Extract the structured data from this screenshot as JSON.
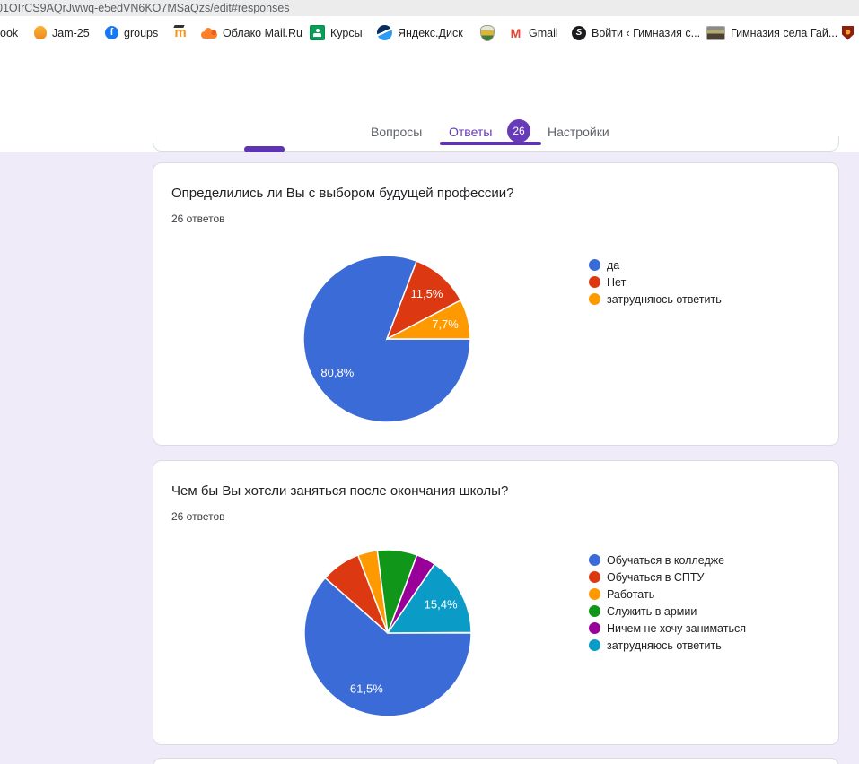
{
  "browser": {
    "url": "01OIrCS9AQrJwwq-e5edVN6KO7MSaQzs/edit#responses",
    "bookmarks": [
      {
        "label": "ook",
        "icon": "bookmark-text-partial"
      },
      {
        "label": "Jam-25",
        "icon": "jam-hand-icon"
      },
      {
        "label": "groups",
        "icon": "facebook-icon"
      },
      {
        "label": "",
        "icon": "moodle-icon"
      },
      {
        "label": "Облако Mail.Ru",
        "icon": "mailru-cloud-icon"
      },
      {
        "label": "Курсы",
        "icon": "google-classroom-icon"
      },
      {
        "label": "Яндекс.Диск",
        "icon": "yandex-disk-icon"
      },
      {
        "label": "",
        "icon": "school-crest-icon"
      },
      {
        "label": "Gmail",
        "icon": "gmail-icon"
      },
      {
        "label": "Войти ‹ Гимназия с...",
        "icon": "globe-s-icon"
      },
      {
        "label": "Гимназия села Гай...",
        "icon": "photo-thumbnail-icon"
      },
      {
        "label": "",
        "icon": "red-crest-icon"
      }
    ]
  },
  "tabs": {
    "questions": "Вопросы",
    "answers": "Ответы",
    "answers_badge": "26",
    "settings": "Настройки"
  },
  "theme": {
    "accent_purple": "#673ab7",
    "underline_purple": "#5e35b1",
    "page_background": "#f0ebf8",
    "card_border": "#dadce0"
  },
  "chart_data": [
    {
      "type": "pie",
      "question": "Определились ли Вы с выбором будущей профессии?",
      "responses_label": "26 ответов",
      "total_responses": 26,
      "start_angle_deg": 90,
      "legend_position": "right",
      "slices": [
        {
          "label": "да",
          "value_pct": 80.8,
          "display": "80,8%",
          "color": "#3b6bd7",
          "show_label": true
        },
        {
          "label": "Нет",
          "value_pct": 11.5,
          "display": "11,5%",
          "color": "#dc3912",
          "show_label": true
        },
        {
          "label": "затрудняюсь ответить",
          "value_pct": 7.7,
          "display": "7,7%",
          "color": "#ff9900",
          "show_label": true
        }
      ]
    },
    {
      "type": "pie",
      "question": "Чем бы Вы хотели заняться после окончания школы?",
      "responses_label": "26 ответов",
      "total_responses": 26,
      "start_angle_deg": 90,
      "legend_position": "right",
      "slices": [
        {
          "label": "Обучаться в колледже",
          "value_pct": 61.5,
          "display": "61,5%",
          "color": "#3b6bd7",
          "show_label": true
        },
        {
          "label": "Обучаться в СПТУ",
          "value_pct": 7.7,
          "display": "7,7%",
          "color": "#dc3912",
          "show_label": false
        },
        {
          "label": "Работать",
          "value_pct": 3.8,
          "display": "3,8%",
          "color": "#ff9900",
          "show_label": false
        },
        {
          "label": "Служить в армии",
          "value_pct": 7.7,
          "display": "7,7%",
          "color": "#109618",
          "show_label": false
        },
        {
          "label": "Ничем не хочу заниматься",
          "value_pct": 3.8,
          "display": "3,8%",
          "color": "#990099",
          "show_label": false
        },
        {
          "label": "затрудняюсь ответить",
          "value_pct": 15.4,
          "display": "15,4%",
          "color": "#0a9bc7",
          "show_label": true
        }
      ]
    }
  ]
}
